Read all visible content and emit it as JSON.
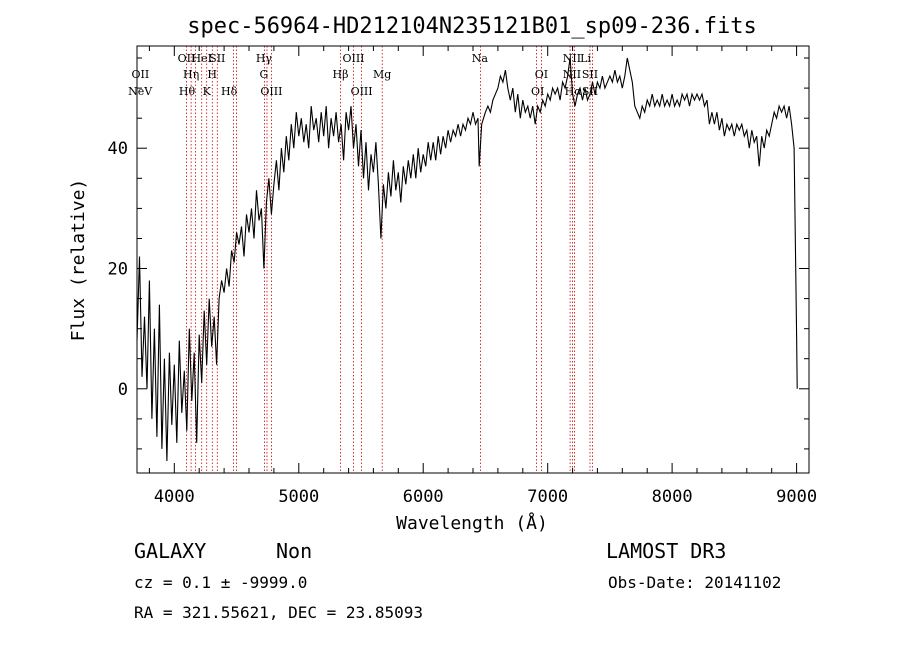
{
  "chart_data": {
    "type": "line",
    "title": "spec-56964-HD212104N235121B01_sp09-236.fits",
    "xlabel": "Wavelength (Å)",
    "ylabel": "Flux (relative)",
    "xlim": [
      3700,
      9100
    ],
    "ylim": [
      -14,
      57
    ],
    "x_ticks": [
      4000,
      5000,
      6000,
      7000,
      8000,
      9000
    ],
    "y_ticks": [
      0,
      20,
      40
    ],
    "grid": false,
    "series": [
      {
        "points": [
          [
            3700,
            8
          ],
          [
            3720,
            22
          ],
          [
            3740,
            2
          ],
          [
            3760,
            12
          ],
          [
            3780,
            0
          ],
          [
            3800,
            18
          ],
          [
            3820,
            -5
          ],
          [
            3840,
            10
          ],
          [
            3860,
            -8
          ],
          [
            3880,
            14
          ],
          [
            3900,
            -10
          ],
          [
            3920,
            5
          ],
          [
            3940,
            -12
          ],
          [
            3960,
            6
          ],
          [
            3980,
            -6
          ],
          [
            4000,
            4
          ],
          [
            4020,
            -9
          ],
          [
            4040,
            8
          ],
          [
            4060,
            -4
          ],
          [
            4080,
            3
          ],
          [
            4100,
            -7
          ],
          [
            4120,
            10
          ],
          [
            4140,
            -2
          ],
          [
            4160,
            6
          ],
          [
            4180,
            -9
          ],
          [
            4200,
            9
          ],
          [
            4220,
            1
          ],
          [
            4240,
            13
          ],
          [
            4260,
            4
          ],
          [
            4280,
            15
          ],
          [
            4300,
            7
          ],
          [
            4320,
            12
          ],
          [
            4340,
            4
          ],
          [
            4360,
            15
          ],
          [
            4380,
            18
          ],
          [
            4400,
            16
          ],
          [
            4420,
            20
          ],
          [
            4440,
            17
          ],
          [
            4460,
            23
          ],
          [
            4480,
            21
          ],
          [
            4500,
            26
          ],
          [
            4520,
            24
          ],
          [
            4540,
            27
          ],
          [
            4560,
            22
          ],
          [
            4580,
            29
          ],
          [
            4600,
            26
          ],
          [
            4620,
            30
          ],
          [
            4640,
            25
          ],
          [
            4660,
            33
          ],
          [
            4680,
            28
          ],
          [
            4700,
            30
          ],
          [
            4720,
            20
          ],
          [
            4740,
            31
          ],
          [
            4760,
            35
          ],
          [
            4780,
            29
          ],
          [
            4800,
            34
          ],
          [
            4820,
            38
          ],
          [
            4840,
            33
          ],
          [
            4860,
            40
          ],
          [
            4880,
            36
          ],
          [
            4900,
            42
          ],
          [
            4920,
            38
          ],
          [
            4940,
            44
          ],
          [
            4960,
            40
          ],
          [
            4980,
            46
          ],
          [
            5000,
            42
          ],
          [
            5020,
            45
          ],
          [
            5040,
            41
          ],
          [
            5060,
            44
          ],
          [
            5080,
            40
          ],
          [
            5100,
            47
          ],
          [
            5120,
            43
          ],
          [
            5140,
            45
          ],
          [
            5160,
            41
          ],
          [
            5180,
            46
          ],
          [
            5200,
            42
          ],
          [
            5220,
            47
          ],
          [
            5240,
            40
          ],
          [
            5260,
            45
          ],
          [
            5280,
            42
          ],
          [
            5300,
            46
          ],
          [
            5320,
            41
          ],
          [
            5340,
            44
          ],
          [
            5360,
            38
          ],
          [
            5380,
            46
          ],
          [
            5400,
            43
          ],
          [
            5420,
            47
          ],
          [
            5440,
            40
          ],
          [
            5460,
            44
          ],
          [
            5480,
            37
          ],
          [
            5500,
            43
          ],
          [
            5520,
            35
          ],
          [
            5540,
            41
          ],
          [
            5560,
            33
          ],
          [
            5580,
            39
          ],
          [
            5600,
            36
          ],
          [
            5620,
            41
          ],
          [
            5640,
            34
          ],
          [
            5660,
            25
          ],
          [
            5680,
            34
          ],
          [
            5700,
            30
          ],
          [
            5720,
            36
          ],
          [
            5740,
            32
          ],
          [
            5760,
            38
          ],
          [
            5780,
            33
          ],
          [
            5800,
            36
          ],
          [
            5820,
            31
          ],
          [
            5840,
            37
          ],
          [
            5860,
            34
          ],
          [
            5880,
            38
          ],
          [
            5900,
            35
          ],
          [
            5920,
            39
          ],
          [
            5940,
            35
          ],
          [
            5960,
            40
          ],
          [
            5980,
            36
          ],
          [
            6000,
            39
          ],
          [
            6020,
            37
          ],
          [
            6040,
            41
          ],
          [
            6060,
            38
          ],
          [
            6080,
            41
          ],
          [
            6100,
            38
          ],
          [
            6120,
            42
          ],
          [
            6140,
            39
          ],
          [
            6160,
            42
          ],
          [
            6180,
            40
          ],
          [
            6200,
            43
          ],
          [
            6220,
            41
          ],
          [
            6240,
            43
          ],
          [
            6260,
            42
          ],
          [
            6280,
            44
          ],
          [
            6300,
            42
          ],
          [
            6320,
            44
          ],
          [
            6340,
            43
          ],
          [
            6360,
            45
          ],
          [
            6380,
            44
          ],
          [
            6400,
            46
          ],
          [
            6420,
            44
          ],
          [
            6440,
            45
          ],
          [
            6450,
            37
          ],
          [
            6470,
            44
          ],
          [
            6500,
            46
          ],
          [
            6520,
            47
          ],
          [
            6540,
            46
          ],
          [
            6560,
            48
          ],
          [
            6580,
            49
          ],
          [
            6600,
            50
          ],
          [
            6620,
            52
          ],
          [
            6640,
            51
          ],
          [
            6660,
            53
          ],
          [
            6680,
            50
          ],
          [
            6700,
            48
          ],
          [
            6720,
            50
          ],
          [
            6740,
            46
          ],
          [
            6760,
            49
          ],
          [
            6780,
            45
          ],
          [
            6800,
            48
          ],
          [
            6820,
            46
          ],
          [
            6840,
            47
          ],
          [
            6860,
            45
          ],
          [
            6880,
            47
          ],
          [
            6900,
            44
          ],
          [
            6920,
            47
          ],
          [
            6940,
            46
          ],
          [
            6960,
            48
          ],
          [
            6980,
            47
          ],
          [
            7000,
            49
          ],
          [
            7020,
            48
          ],
          [
            7040,
            50
          ],
          [
            7060,
            49
          ],
          [
            7080,
            50
          ],
          [
            7100,
            48
          ],
          [
            7120,
            51
          ],
          [
            7140,
            50
          ],
          [
            7160,
            52
          ],
          [
            7180,
            55
          ],
          [
            7200,
            49
          ],
          [
            7220,
            47
          ],
          [
            7240,
            49
          ],
          [
            7260,
            50
          ],
          [
            7280,
            48
          ],
          [
            7300,
            50
          ],
          [
            7320,
            48
          ],
          [
            7340,
            49
          ],
          [
            7360,
            51
          ],
          [
            7380,
            49
          ],
          [
            7400,
            51
          ],
          [
            7420,
            50
          ],
          [
            7440,
            52
          ],
          [
            7460,
            50
          ],
          [
            7480,
            51
          ],
          [
            7500,
            52
          ],
          [
            7520,
            51
          ],
          [
            7540,
            53
          ],
          [
            7560,
            51
          ],
          [
            7580,
            52
          ],
          [
            7600,
            50
          ],
          [
            7620,
            52
          ],
          [
            7640,
            55
          ],
          [
            7660,
            53
          ],
          [
            7680,
            51
          ],
          [
            7700,
            47
          ],
          [
            7720,
            46
          ],
          [
            7740,
            45
          ],
          [
            7760,
            47
          ],
          [
            7780,
            46
          ],
          [
            7800,
            48
          ],
          [
            7820,
            47
          ],
          [
            7840,
            49
          ],
          [
            7860,
            47
          ],
          [
            7880,
            48
          ],
          [
            7900,
            47
          ],
          [
            7920,
            49
          ],
          [
            7940,
            47
          ],
          [
            7960,
            48
          ],
          [
            7980,
            47
          ],
          [
            8000,
            49
          ],
          [
            8020,
            47
          ],
          [
            8040,
            48
          ],
          [
            8060,
            47
          ],
          [
            8080,
            49
          ],
          [
            8100,
            48
          ],
          [
            8120,
            49
          ],
          [
            8140,
            47
          ],
          [
            8160,
            49
          ],
          [
            8180,
            48
          ],
          [
            8200,
            49
          ],
          [
            8220,
            48
          ],
          [
            8240,
            49
          ],
          [
            8260,
            47
          ],
          [
            8280,
            48
          ],
          [
            8300,
            44
          ],
          [
            8320,
            46
          ],
          [
            8340,
            44
          ],
          [
            8360,
            46
          ],
          [
            8380,
            43
          ],
          [
            8400,
            45
          ],
          [
            8420,
            42
          ],
          [
            8440,
            44
          ],
          [
            8460,
            43
          ],
          [
            8480,
            44
          ],
          [
            8500,
            42
          ],
          [
            8520,
            44
          ],
          [
            8540,
            43
          ],
          [
            8560,
            44
          ],
          [
            8580,
            42
          ],
          [
            8600,
            43
          ],
          [
            8620,
            40
          ],
          [
            8640,
            43
          ],
          [
            8660,
            41
          ],
          [
            8680,
            42
          ],
          [
            8700,
            37
          ],
          [
            8720,
            42
          ],
          [
            8740,
            40
          ],
          [
            8760,
            43
          ],
          [
            8780,
            42
          ],
          [
            8800,
            44
          ],
          [
            8820,
            46
          ],
          [
            8840,
            45
          ],
          [
            8860,
            47
          ],
          [
            8880,
            46
          ],
          [
            8900,
            47
          ],
          [
            8920,
            45
          ],
          [
            8940,
            47
          ],
          [
            8960,
            44
          ],
          [
            8980,
            40
          ],
          [
            9000,
            9
          ],
          [
            9005,
            0
          ]
        ]
      }
    ],
    "spectral_lines": [
      {
        "label": "NeV",
        "wavelength": 3726,
        "row": 3
      },
      {
        "label": "OII",
        "wavelength": 3727,
        "row": 2
      },
      {
        "label": "OII",
        "wavelength": 4098,
        "row": 1
      },
      {
        "label": "Hθ",
        "wavelength": 4102,
        "row": 3
      },
      {
        "label": "Hη",
        "wavelength": 4135,
        "row": 2
      },
      {
        "label": "HeI",
        "wavelength": 4220,
        "row": 1
      },
      {
        "label": "K",
        "wavelength": 4260,
        "row": 3
      },
      {
        "label": "H",
        "wavelength": 4304,
        "row": 2
      },
      {
        "label": "SII",
        "wavelength": 4345,
        "row": 1
      },
      {
        "label": "Hδ",
        "wavelength": 4440,
        "row": 3
      },
      {
        "label": "Hγ",
        "wavelength": 4720,
        "row": 1
      },
      {
        "label": "G",
        "wavelength": 4720,
        "row": 2
      },
      {
        "label": "OIII",
        "wavelength": 4780,
        "row": 3
      },
      {
        "label": "Hβ",
        "wavelength": 5335,
        "row": 2
      },
      {
        "label": "OIII",
        "wavelength": 5440,
        "row": 1
      },
      {
        "label": "OIII",
        "wavelength": 5505,
        "row": 3
      },
      {
        "label": "Mg",
        "wavelength": 5670,
        "row": 2
      },
      {
        "label": "Na",
        "wavelength": 6455,
        "row": 1
      },
      {
        "label": "OI",
        "wavelength": 6950,
        "row": 2
      },
      {
        "label": "OI",
        "wavelength": 6920,
        "row": 3
      },
      {
        "label": "NII",
        "wavelength": 7195,
        "row": 1
      },
      {
        "label": "NII",
        "wavelength": 7195,
        "row": 2
      },
      {
        "label": "Hα",
        "wavelength": 7205,
        "row": 3
      },
      {
        "label": "Li",
        "wavelength": 7305,
        "row": 1
      },
      {
        "label": "SII",
        "wavelength": 7340,
        "row": 2
      },
      {
        "label": "SII",
        "wavelength": 7340,
        "row": 3
      }
    ],
    "line_markers": [
      4098,
      4135,
      4170,
      4220,
      4260,
      4305,
      4345,
      4475,
      4500,
      4725,
      4745,
      4780,
      5335,
      5440,
      5505,
      5670,
      6460,
      6910,
      6950,
      7180,
      7200,
      7215,
      7340,
      7360
    ]
  },
  "footer": {
    "object_class": "GALAXY",
    "subclass": "Non",
    "survey": "LAMOST DR3",
    "cz": "cz = 0.1 ± -9999.0",
    "obs_date": "Obs-Date: 20141102",
    "coords": "RA = 321.55621, DEC =  23.85093"
  },
  "colors": {
    "line_marker": "#cc0000",
    "spectrum": "#000000"
  }
}
